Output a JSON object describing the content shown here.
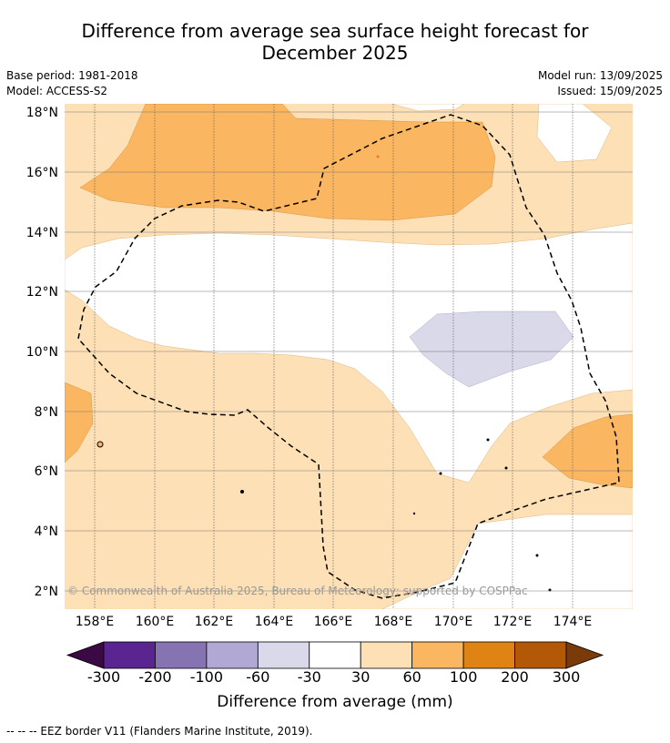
{
  "title_line1": "Difference from average sea surface height forecast for",
  "title_line2": "December 2025",
  "base_period": "Base period: 1981-2018",
  "model": "Model: ACCESS-S2",
  "model_run": "Model run: 13/09/2025",
  "issued": "Issued: 15/09/2025",
  "copyright": "© Commonwealth of Australia 2025, Bureau of Meteorology; supported by COSPPac",
  "lat_labels": [
    "18°N",
    "16°N",
    "14°N",
    "12°N",
    "10°N",
    "8°N",
    "6°N",
    "4°N",
    "2°N"
  ],
  "lon_labels": [
    "158°E",
    "160°E",
    "162°E",
    "164°E",
    "166°E",
    "168°E",
    "170°E",
    "172°E",
    "174°E"
  ],
  "colorbar": {
    "colors": [
      "#3b0a45",
      "#5a2590",
      "#8673b2",
      "#b1a8d3",
      "#d9d9ea",
      "#ffffff",
      "#fde0b6",
      "#fab660",
      "#e08315",
      "#b25807",
      "#7b3a0a"
    ],
    "tick_labels": [
      "-300",
      "-200",
      "-100",
      "-60",
      "-30",
      "30",
      "60",
      "100",
      "200",
      "300"
    ],
    "label": "Difference from average (mm)"
  },
  "legend_line": "--  --  -- EEZ border V11 (Flanders Marine Institute, 2019)."
}
